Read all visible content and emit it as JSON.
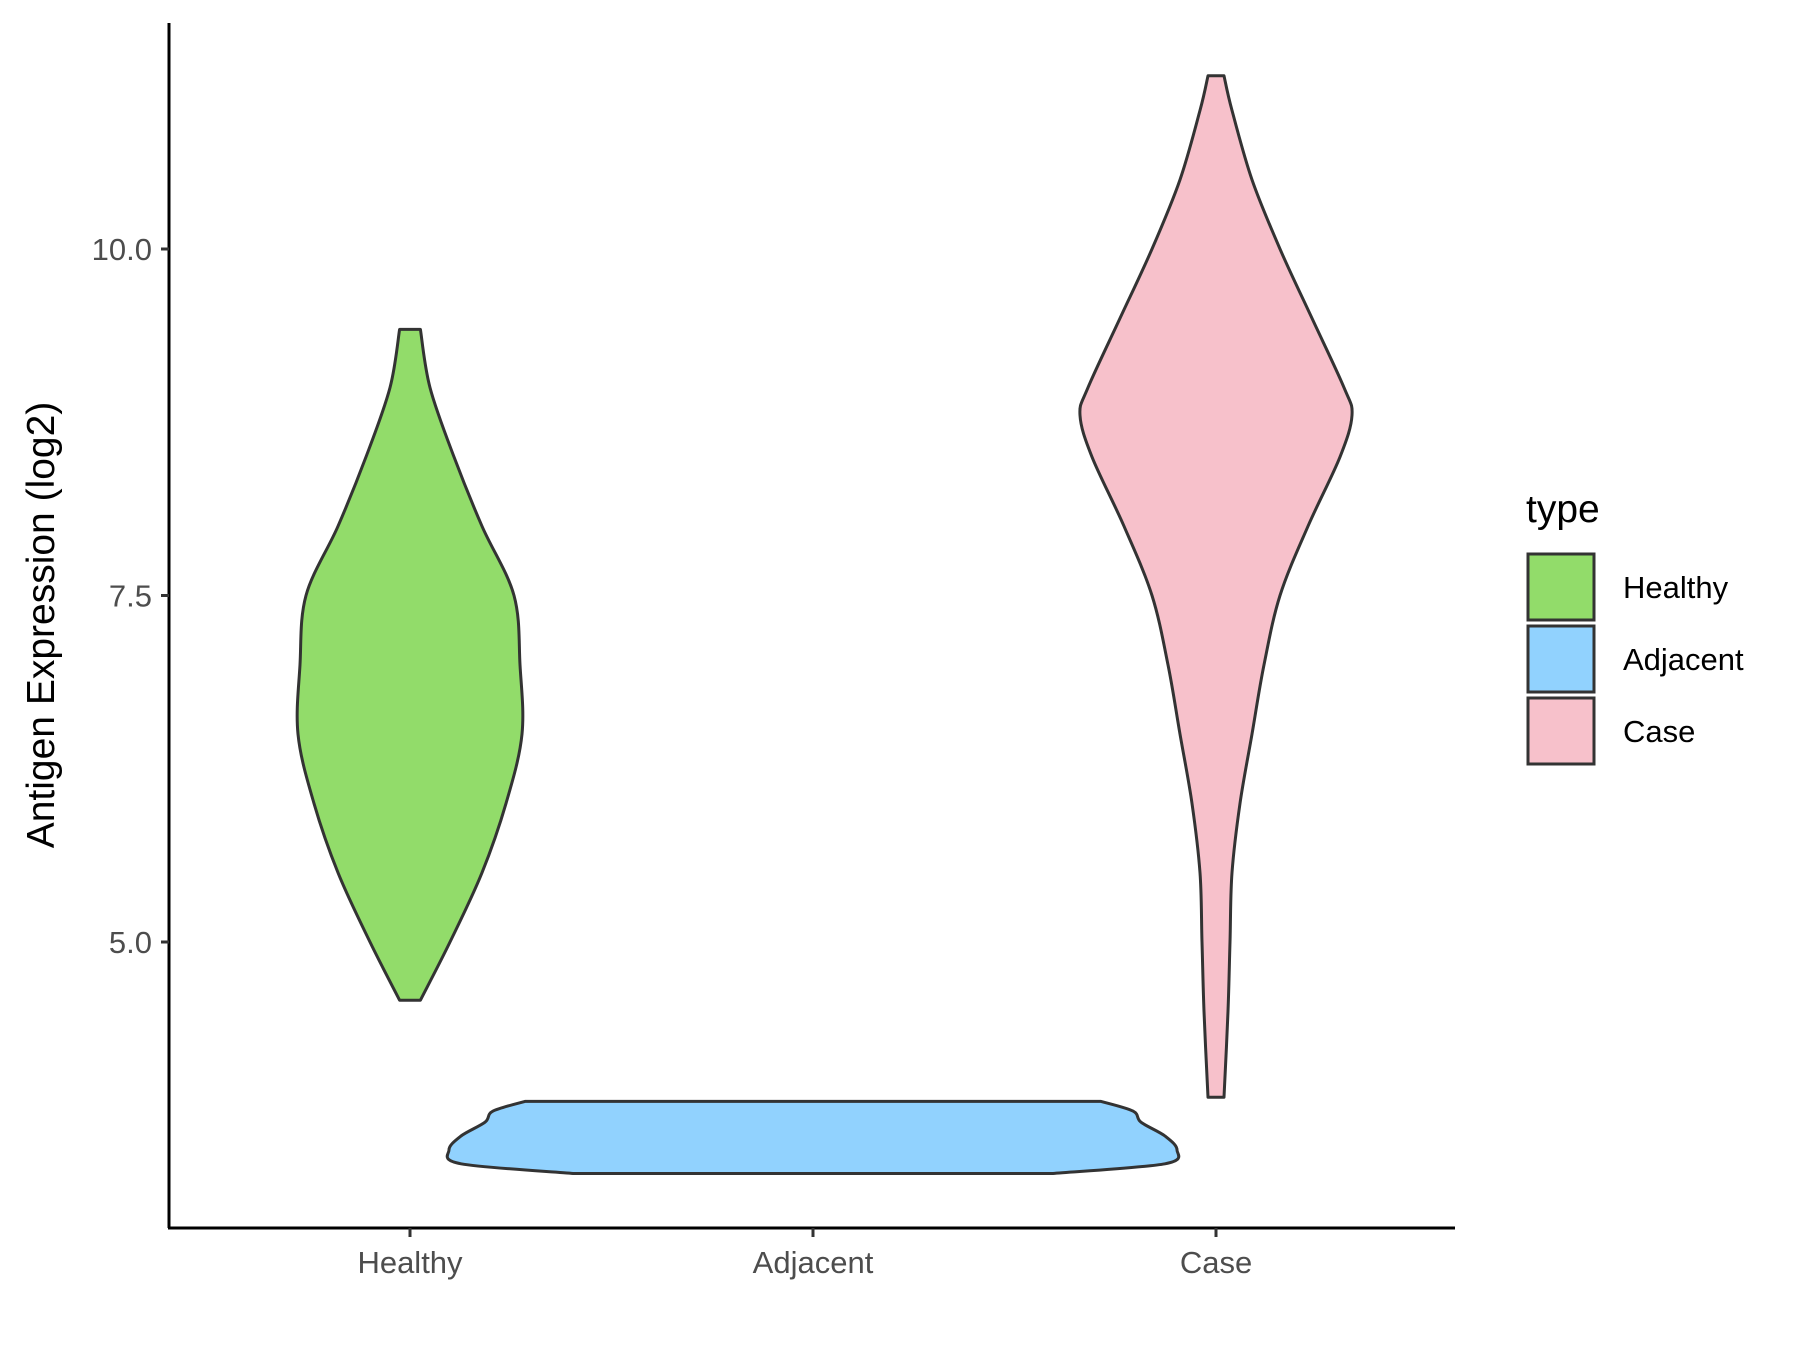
{
  "chart_data": {
    "type": "violin",
    "categories": [
      "Healthy",
      "Adjacent",
      "Case"
    ],
    "ylabel": "Antigen Expression (log2)",
    "xlabel": "",
    "ylim": [
      3.0,
      12.0
    ],
    "yticks": [
      5.0,
      7.5,
      10.0
    ],
    "ytick_labels": [
      "5.0",
      "7.5",
      "10.0"
    ],
    "grid": false,
    "legend": {
      "title": "type",
      "position": "right",
      "entries": [
        "Healthy",
        "Adjacent",
        "Case"
      ]
    },
    "series": [
      {
        "category": "Healthy",
        "fill": "#92dc6a",
        "min": 4.58,
        "max": 9.42,
        "density": [
          [
            4.58,
            0.026
          ],
          [
            5.0,
            0.1
          ],
          [
            5.5,
            0.18
          ],
          [
            6.0,
            0.24
          ],
          [
            6.5,
            0.28
          ],
          [
            7.0,
            0.275
          ],
          [
            7.5,
            0.26
          ],
          [
            8.0,
            0.18
          ],
          [
            8.5,
            0.11
          ],
          [
            9.0,
            0.05
          ],
          [
            9.42,
            0.026
          ]
        ]
      },
      {
        "category": "Adjacent",
        "fill": "#91d2fe",
        "min": 3.33,
        "max": 3.85,
        "density": [
          [
            3.33,
            0.6
          ],
          [
            3.4,
            0.88
          ],
          [
            3.5,
            0.91
          ],
          [
            3.6,
            0.88
          ],
          [
            3.7,
            0.82
          ],
          [
            3.78,
            0.8
          ],
          [
            3.85,
            0.72
          ]
        ]
      },
      {
        "category": "Case",
        "fill": "#f7c1cb",
        "min": 3.88,
        "max": 11.25,
        "density": [
          [
            3.88,
            0.02
          ],
          [
            4.5,
            0.03
          ],
          [
            5.0,
            0.035
          ],
          [
            5.5,
            0.04
          ],
          [
            6.0,
            0.06
          ],
          [
            6.5,
            0.09
          ],
          [
            7.0,
            0.12
          ],
          [
            7.5,
            0.16
          ],
          [
            8.0,
            0.23
          ],
          [
            8.5,
            0.31
          ],
          [
            8.8,
            0.34
          ],
          [
            9.0,
            0.32
          ],
          [
            9.5,
            0.24
          ],
          [
            10.0,
            0.16
          ],
          [
            10.5,
            0.09
          ],
          [
            11.0,
            0.04
          ],
          [
            11.25,
            0.02
          ]
        ]
      }
    ]
  }
}
